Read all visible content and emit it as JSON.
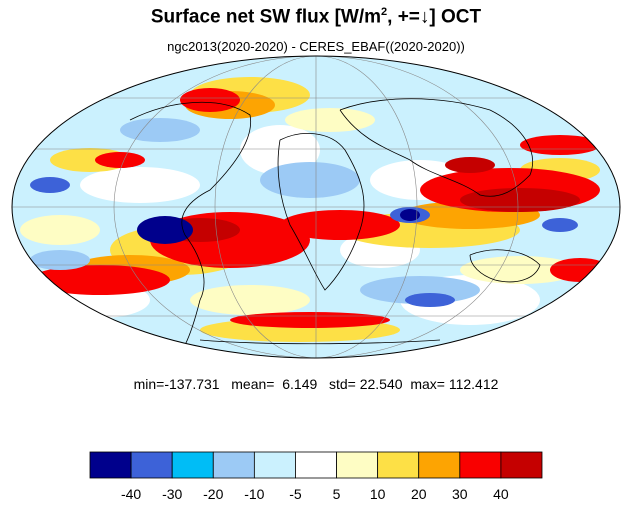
{
  "title": {
    "main": "Surface net SW flux [W/m",
    "sup": "2",
    "rest": ", +=↓]  OCT"
  },
  "subtitle": "ngc2013(2020-2020) - CERES_EBAF((2020-2020))",
  "stats": {
    "min_label": "min=",
    "min": "-137.731",
    "mean_label": "mean=",
    "mean": "6.149",
    "std_label": "std=",
    "std": "22.540",
    "max_label": "max=",
    "max": "112.412"
  },
  "colorbar": {
    "colors": [
      "#00008c",
      "#3d62d8",
      "#00bdf6",
      "#9ccaf5",
      "#cbf1fe",
      "#ffffff",
      "#fefdc4",
      "#fde046",
      "#fda402",
      "#f90000",
      "#c50000"
    ],
    "ticks": [
      "-40",
      "-30",
      "-20",
      "-10",
      "-5",
      "5",
      "10",
      "20",
      "30",
      "40"
    ]
  }
}
